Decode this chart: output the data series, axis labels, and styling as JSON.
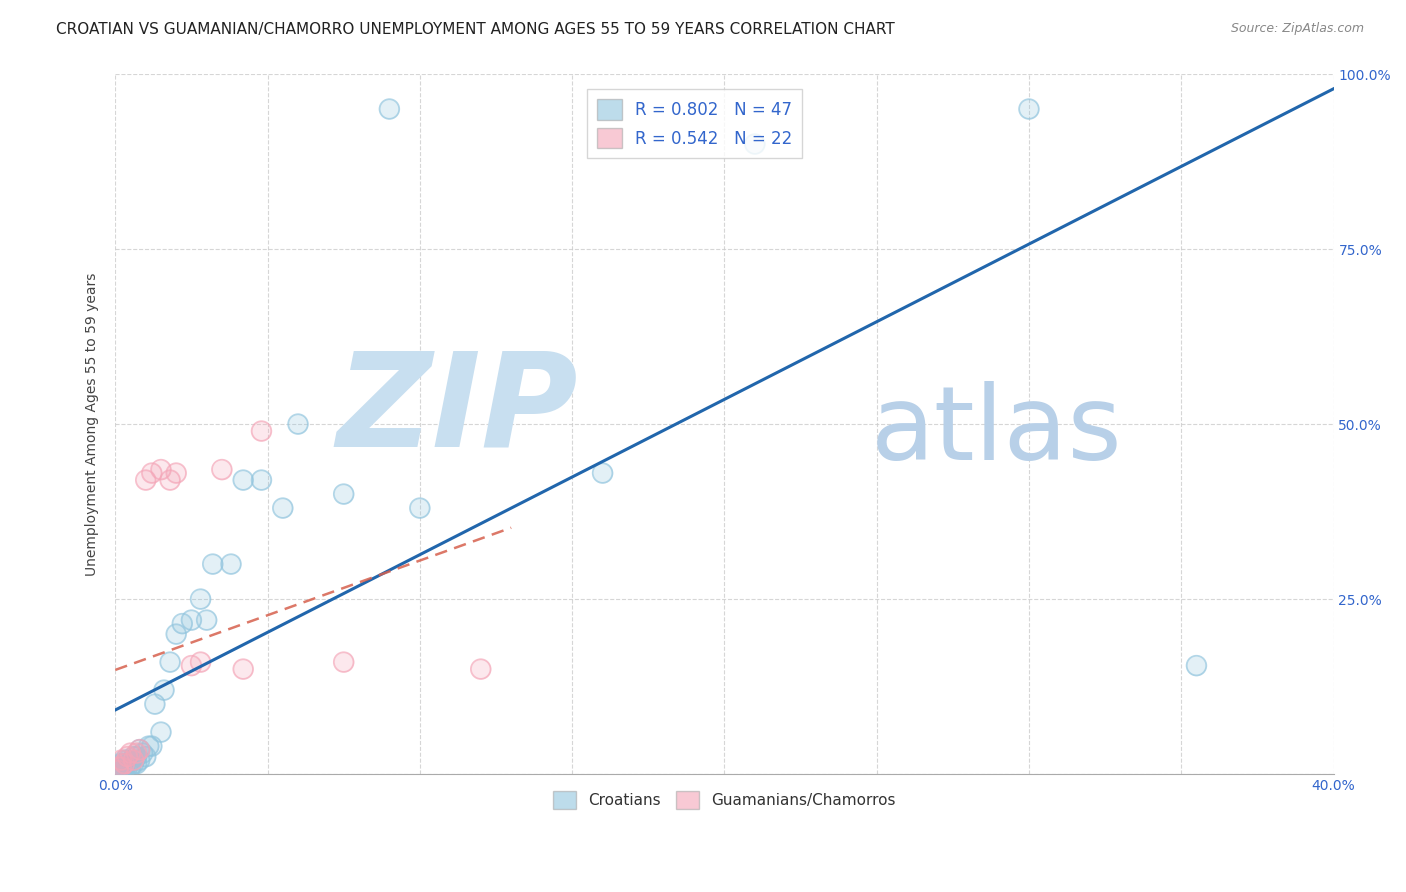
{
  "title": "CROATIAN VS GUAMANIAN/CHAMORRO UNEMPLOYMENT AMONG AGES 55 TO 59 YEARS CORRELATION CHART",
  "source": "Source: ZipAtlas.com",
  "ylabel": "Unemployment Among Ages 55 to 59 years",
  "xlim": [
    0.0,
    0.4
  ],
  "ylim": [
    0.0,
    1.0
  ],
  "r_croatian": 0.802,
  "n_croatian": 47,
  "r_guamanian": 0.542,
  "n_guamanian": 22,
  "croatian_color": "#92c5de",
  "guamanian_color": "#f4a6b8",
  "regression_line_color_croatian": "#2166ac",
  "regression_line_color_guamanian": "#d6604d",
  "watermark_zip": "ZIP",
  "watermark_atlas": "atlas",
  "watermark_color_zip": "#c8dff0",
  "watermark_color_atlas": "#b8d0e8",
  "background_color": "#ffffff",
  "title_fontsize": 11,
  "source_fontsize": 9,
  "legend_fontsize": 12,
  "croatian_x": [
    0.001,
    0.001,
    0.001,
    0.002,
    0.002,
    0.002,
    0.002,
    0.003,
    0.003,
    0.003,
    0.003,
    0.004,
    0.004,
    0.005,
    0.005,
    0.006,
    0.006,
    0.007,
    0.007,
    0.008,
    0.008,
    0.009,
    0.01,
    0.011,
    0.012,
    0.013,
    0.015,
    0.016,
    0.018,
    0.02,
    0.022,
    0.025,
    0.028,
    0.03,
    0.032,
    0.038,
    0.042,
    0.048,
    0.055,
    0.06,
    0.075,
    0.09,
    0.1,
    0.16,
    0.21,
    0.3,
    0.355
  ],
  "croatian_y": [
    0.005,
    0.008,
    0.01,
    0.005,
    0.008,
    0.01,
    0.015,
    0.005,
    0.01,
    0.015,
    0.02,
    0.01,
    0.02,
    0.01,
    0.018,
    0.015,
    0.025,
    0.015,
    0.025,
    0.02,
    0.035,
    0.03,
    0.025,
    0.04,
    0.04,
    0.1,
    0.06,
    0.12,
    0.16,
    0.2,
    0.215,
    0.22,
    0.25,
    0.22,
    0.3,
    0.3,
    0.42,
    0.42,
    0.38,
    0.5,
    0.4,
    0.95,
    0.38,
    0.43,
    0.9,
    0.95,
    0.155
  ],
  "guamanian_x": [
    0.001,
    0.001,
    0.002,
    0.002,
    0.003,
    0.004,
    0.005,
    0.006,
    0.007,
    0.008,
    0.01,
    0.012,
    0.015,
    0.018,
    0.02,
    0.025,
    0.028,
    0.035,
    0.042,
    0.048,
    0.075,
    0.12
  ],
  "guamanian_y": [
    0.005,
    0.01,
    0.01,
    0.02,
    0.015,
    0.025,
    0.03,
    0.02,
    0.03,
    0.035,
    0.42,
    0.43,
    0.435,
    0.42,
    0.43,
    0.155,
    0.16,
    0.435,
    0.15,
    0.49,
    0.16,
    0.15
  ]
}
